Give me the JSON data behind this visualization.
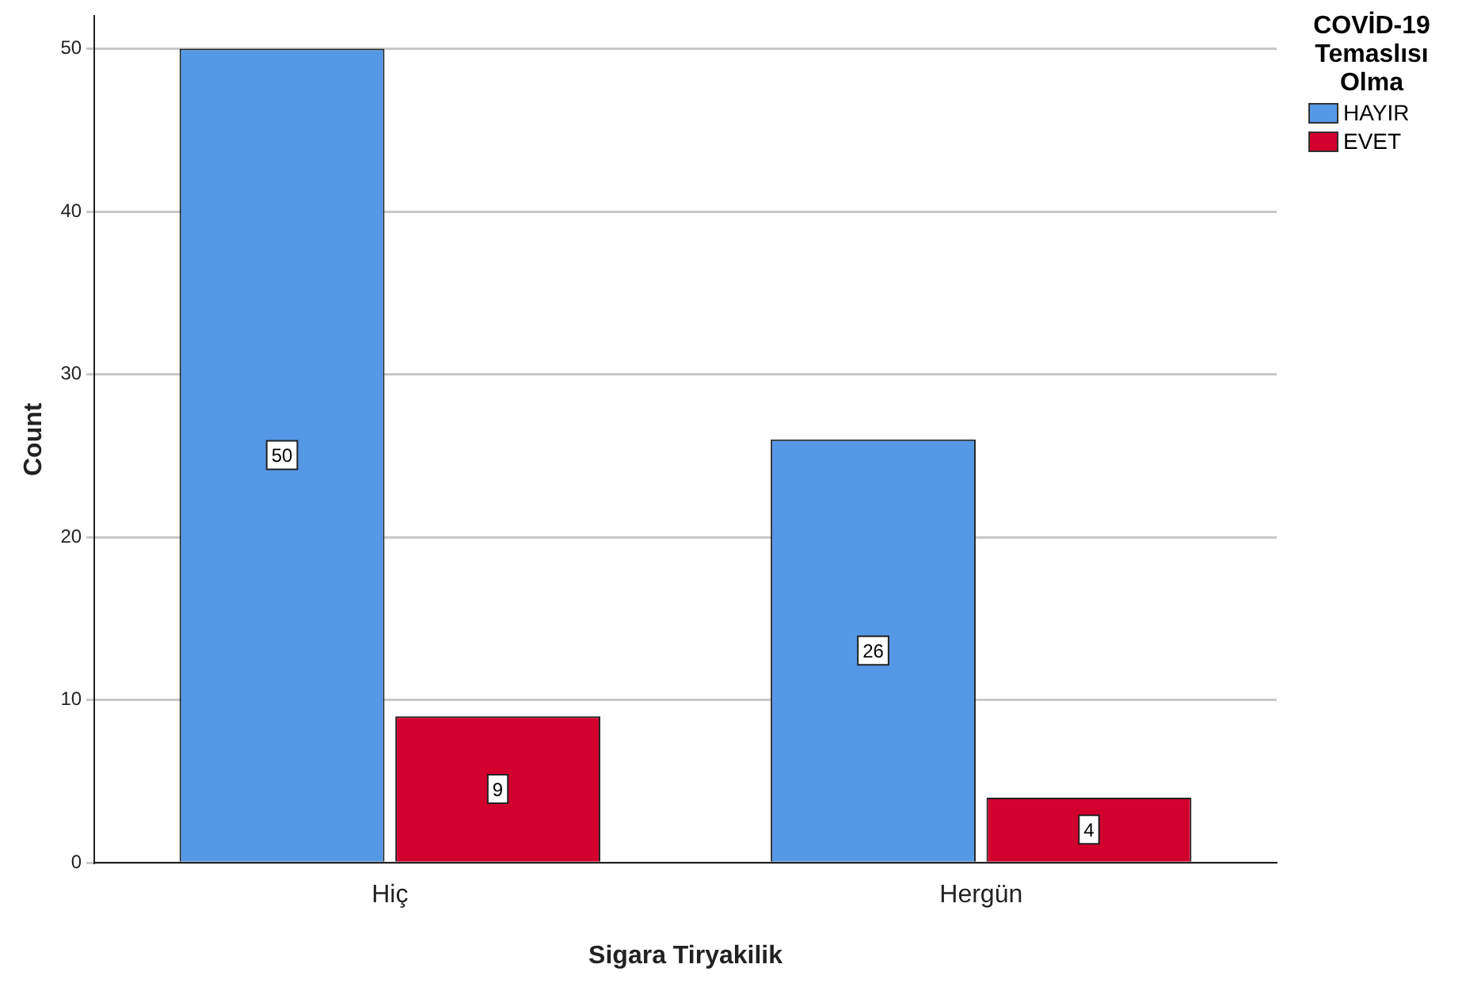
{
  "chart_data": {
    "type": "bar",
    "xlabel": "Sigara Tiryakilik",
    "ylabel": "Count",
    "legend_title": "COVİD-19 Temaslısı Olma",
    "categories": [
      "Hiç",
      "Hergün"
    ],
    "series": [
      {
        "name": "HAYIR",
        "color": "#5598e6",
        "values": [
          50,
          26
        ]
      },
      {
        "name": "EVET",
        "color": "#d2002e",
        "values": [
          9,
          4
        ]
      }
    ],
    "ylim": [
      0,
      52
    ],
    "yticks": [
      0,
      10,
      20,
      30,
      40,
      50
    ],
    "grid": "y",
    "legend": "top right",
    "data_labels": true
  }
}
